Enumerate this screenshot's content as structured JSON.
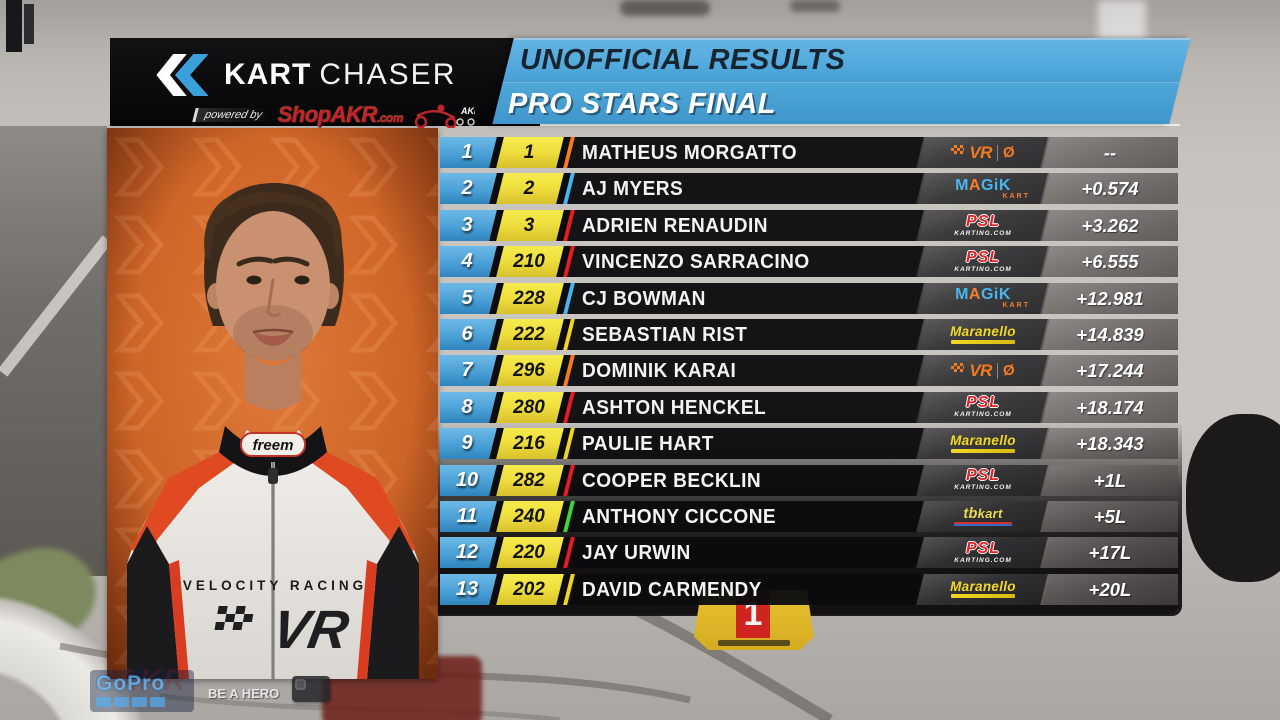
{
  "header": {
    "brand_bold": "KART",
    "brand_light": "CHASER",
    "powered_by": "powered by",
    "sponsor": "ShopAKR",
    "sponsor_tld": ".com",
    "akr_label": "AKR",
    "line1": "UNOFFICIAL RESULTS",
    "line2": "PRO STARS FINAL"
  },
  "photo": {
    "suit_brand": "freem",
    "team_name": "VELOCITY RACING",
    "vr_mark": "VR"
  },
  "table": {
    "rows": [
      {
        "pos": "1",
        "num": "1",
        "name": "MATHEUS MORGATTO",
        "team": "vr",
        "gap": "--"
      },
      {
        "pos": "2",
        "num": "2",
        "name": "AJ MYERS",
        "team": "magik",
        "gap": "+0.574"
      },
      {
        "pos": "3",
        "num": "3",
        "name": "ADRIEN RENAUDIN",
        "team": "psl",
        "gap": "+3.262"
      },
      {
        "pos": "4",
        "num": "210",
        "name": "VINCENZO SARRACINO",
        "team": "psl",
        "gap": "+6.555"
      },
      {
        "pos": "5",
        "num": "228",
        "name": "CJ BOWMAN",
        "team": "magik",
        "gap": "+12.981"
      },
      {
        "pos": "6",
        "num": "222",
        "name": "SEBASTIAN RIST",
        "team": "maranello",
        "gap": "+14.839"
      },
      {
        "pos": "7",
        "num": "296",
        "name": "DOMINIK KARAI",
        "team": "vr",
        "gap": "+17.244"
      },
      {
        "pos": "8",
        "num": "280",
        "name": "ASHTON HENCKEL",
        "team": "psl",
        "gap": "+18.174"
      },
      {
        "pos": "9",
        "num": "216",
        "name": "PAULIE HART",
        "team": "maranello",
        "gap": "+18.343"
      },
      {
        "pos": "10",
        "num": "282",
        "name": "COOPER BECKLIN",
        "team": "psl",
        "gap": "+1L"
      },
      {
        "pos": "11",
        "num": "240",
        "name": "ANTHONY CICCONE",
        "team": "tbkart",
        "gap": "+5L"
      },
      {
        "pos": "12",
        "num": "220",
        "name": "JAY URWIN",
        "team": "psl",
        "gap": "+17L"
      },
      {
        "pos": "13",
        "num": "202",
        "name": "DAVID CARMENDY",
        "team": "maranello",
        "gap": "+20L"
      }
    ]
  },
  "teams": {
    "vr": {
      "label": "VR",
      "symbol": "Ø",
      "accent": "#f47b20"
    },
    "magik": {
      "m": "M",
      "a": "A",
      "gik": "GiK",
      "sub": "KART",
      "accent": "#45b6ee"
    },
    "psl": {
      "label": "PSL",
      "sub": "KARTING.COM",
      "accent": "#e51c23"
    },
    "maranello": {
      "label": "Maranello",
      "accent": "#f0d525"
    },
    "tbkart": {
      "tb": "tb",
      "kart": "kart",
      "accent": "#3fd43c"
    }
  },
  "colors": {
    "position_blue": "#4ba0d6",
    "number_yellow": "#eedd3d",
    "header_blue": "#54abdd"
  },
  "background": {
    "kart_plate_number": "1"
  },
  "watermark": {
    "brand": "GoPro",
    "tagline": "BE A HERO",
    "akr": "AKR"
  }
}
